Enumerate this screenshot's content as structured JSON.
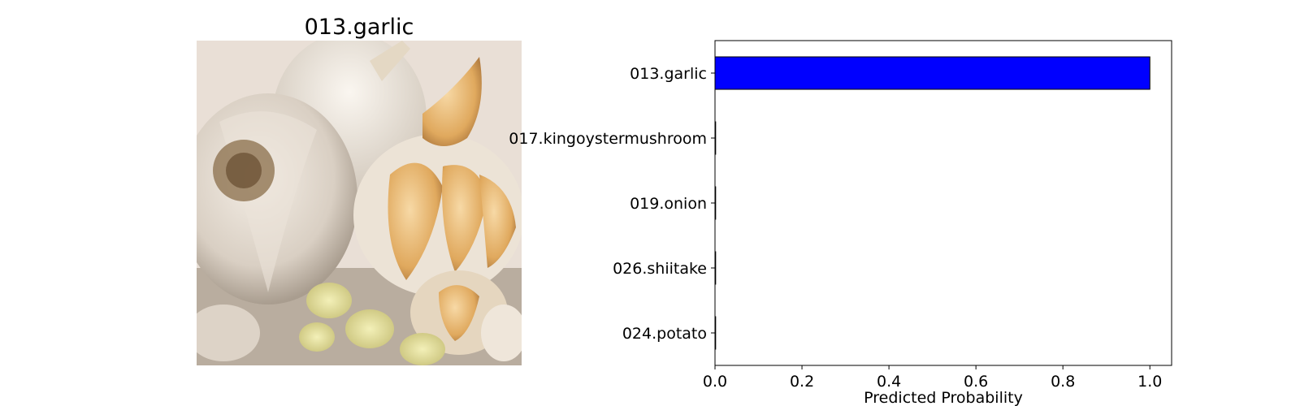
{
  "image_panel": {
    "title": "013.garlic",
    "image_icon": "garlic-photo"
  },
  "chart_data": {
    "type": "bar",
    "orientation": "horizontal",
    "categories": [
      "013.garlic",
      "017.kingoystermushroom",
      "019.onion",
      "026.shiitake",
      "024.potato"
    ],
    "values": [
      1.0,
      0.0,
      0.0,
      0.0,
      0.0
    ],
    "title": "",
    "xlabel": "Predicted Probability",
    "ylabel": "",
    "xlim": [
      0,
      1.05
    ],
    "xticks": [
      "0.0",
      "0.2",
      "0.4",
      "0.6",
      "0.8",
      "1.0"
    ],
    "grid": false,
    "bar_color": "#0000ff"
  }
}
